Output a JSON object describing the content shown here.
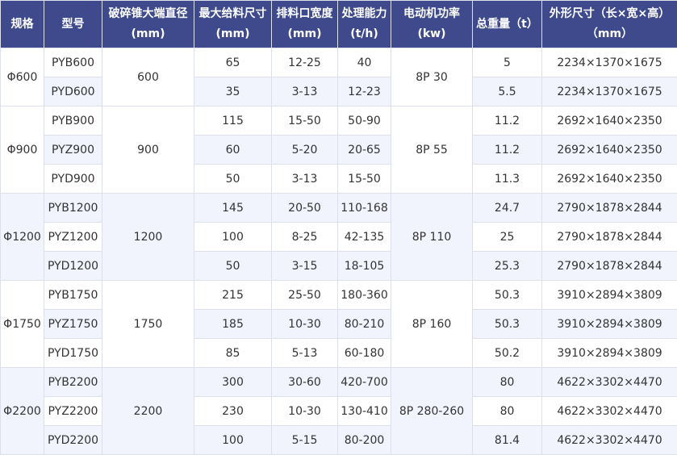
{
  "header": [
    {
      "line1": "规格",
      "line2": ""
    },
    {
      "line1": "型号",
      "line2": ""
    },
    {
      "line1": "破碎锥大端直径",
      "line2": "(mm)"
    },
    {
      "line1": "最大给料尺寸",
      "line2": "(mm)"
    },
    {
      "line1": "排料口宽度",
      "line2": "(mm)"
    },
    {
      "line1": "处理能力",
      "line2": "(t/h)"
    },
    {
      "line1": "电动机功率",
      "line2": "(kw)"
    },
    {
      "line1": "总重量（t）",
      "line2": ""
    },
    {
      "line1": "外形尺寸（长×宽×高）",
      "line2": "（mm）"
    }
  ],
  "groups": [
    {
      "spec": "Φ600",
      "diameter": "600",
      "motor": "8P 30",
      "rows": [
        {
          "model": "PYB600",
          "feed": "65",
          "discharge": "12-25",
          "capacity": "40",
          "weight": "5",
          "dims": "2234×1370×1675"
        },
        {
          "model": "PYD600",
          "feed": "35",
          "discharge": "3-13",
          "capacity": "12-23",
          "weight": "5.5",
          "dims": "2234×1370×1675"
        }
      ]
    },
    {
      "spec": "Φ900",
      "diameter": "900",
      "motor": "8P 55",
      "rows": [
        {
          "model": "PYB900",
          "feed": "115",
          "discharge": "15-50",
          "capacity": "50-90",
          "weight": "11.2",
          "dims": "2692×1640×2350"
        },
        {
          "model": "PYZ900",
          "feed": "60",
          "discharge": "5-20",
          "capacity": "20-65",
          "weight": "11.2",
          "dims": "2692×1640×2350"
        },
        {
          "model": "PYD900",
          "feed": "50",
          "discharge": "3-13",
          "capacity": "15-50",
          "weight": "11.3",
          "dims": "2692×1640×2350"
        }
      ]
    },
    {
      "spec": "Φ1200",
      "diameter": "1200",
      "motor": "8P 110",
      "rows": [
        {
          "model": "PYB1200",
          "feed": "145",
          "discharge": "20-50",
          "capacity": "110-168",
          "weight": "24.7",
          "dims": "2790×1878×2844"
        },
        {
          "model": "PYZ1200",
          "feed": "100",
          "discharge": "8-25",
          "capacity": "42-135",
          "weight": "25",
          "dims": "2790×1878×2844"
        },
        {
          "model": "PYD1200",
          "feed": "50",
          "discharge": "3-15",
          "capacity": "18-105",
          "weight": "25.3",
          "dims": "2790×1878×2844"
        }
      ]
    },
    {
      "spec": "Φ1750",
      "diameter": "1750",
      "motor": "8P 160",
      "rows": [
        {
          "model": "PYB1750",
          "feed": "215",
          "discharge": "25-50",
          "capacity": "180-360",
          "weight": "50.3",
          "dims": "3910×2894×3809"
        },
        {
          "model": "PYZ1750",
          "feed": "185",
          "discharge": "10-30",
          "capacity": "80-210",
          "weight": "50.3",
          "dims": "3910×2894×3809"
        },
        {
          "model": "PYD1750",
          "feed": "85",
          "discharge": "5-13",
          "capacity": "60-180",
          "weight": "50.2",
          "dims": "3910×2894×3809"
        }
      ]
    },
    {
      "spec": "Φ2200",
      "diameter": "2200",
      "motor": "8P 280-260",
      "rows": [
        {
          "model": "PYB2200",
          "feed": "300",
          "discharge": "30-60",
          "capacity": "420-700",
          "weight": "80",
          "dims": "4622×3302×4470"
        },
        {
          "model": "PYZ2200",
          "feed": "230",
          "discharge": "10-30",
          "capacity": "130-410",
          "weight": "80",
          "dims": "4622×3302×4470"
        },
        {
          "model": "PYD2200",
          "feed": "100",
          "discharge": "5-15",
          "capacity": "80-200",
          "weight": "81.4",
          "dims": "4622×3302×4470"
        }
      ]
    }
  ]
}
